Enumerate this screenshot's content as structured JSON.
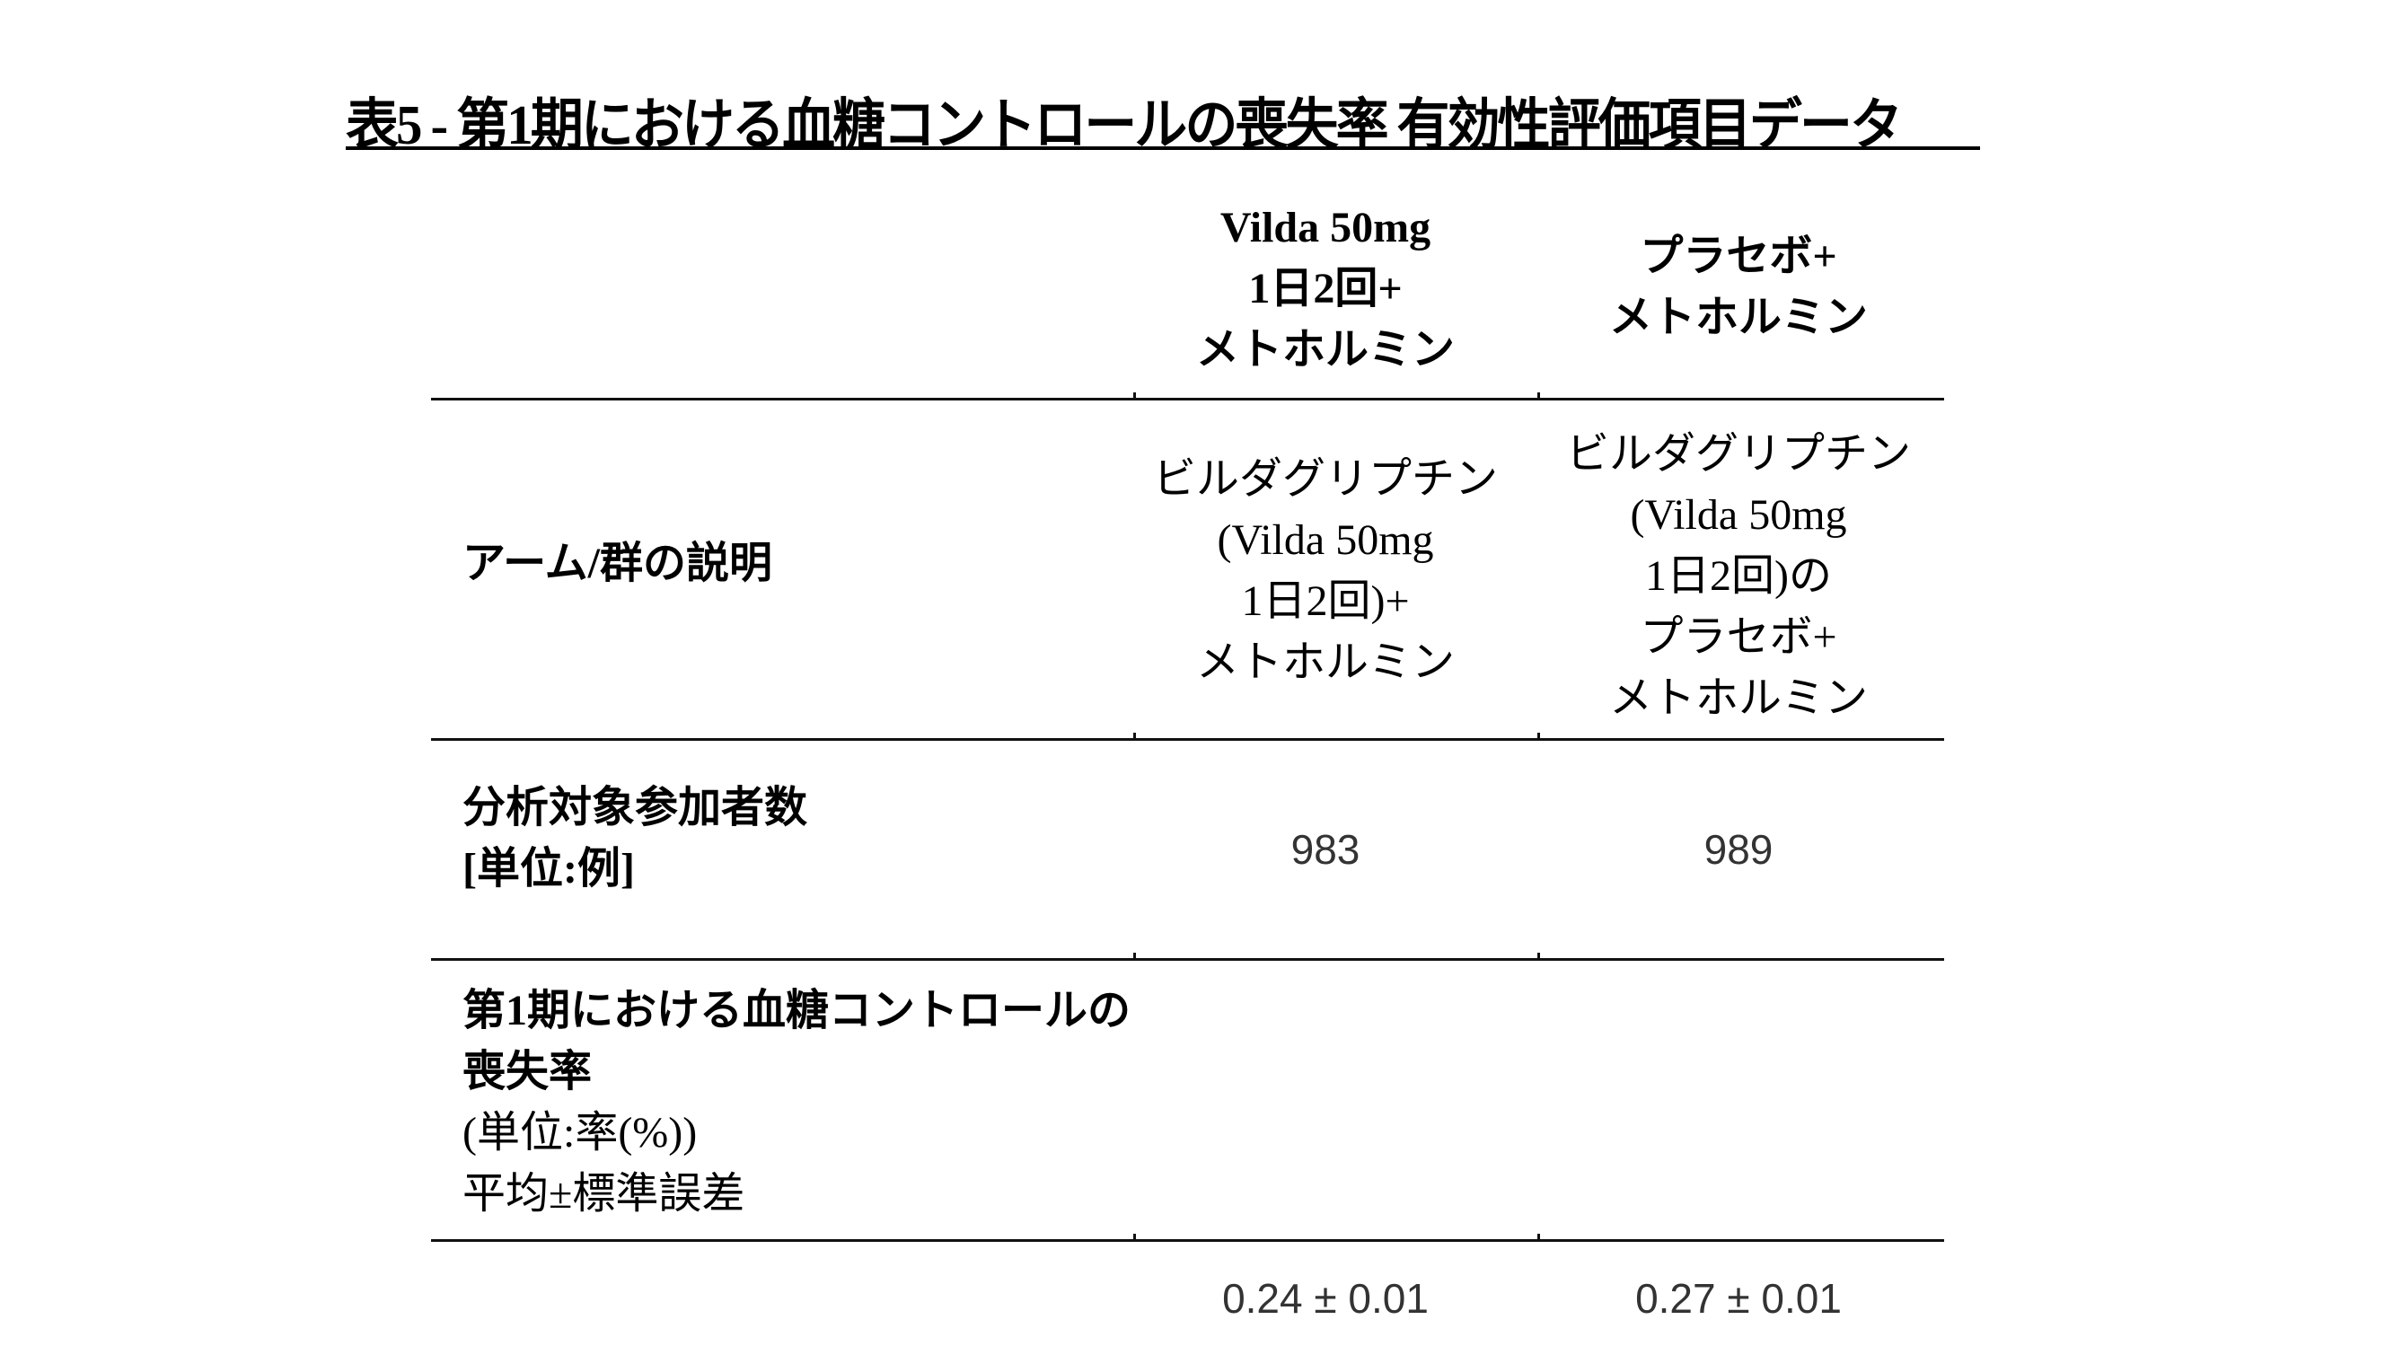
{
  "title": "表5 - 第1期における血糖コントロールの喪失率 有効性評価項目データ",
  "columns": [
    {
      "lines": [
        "Vilda 50mg",
        "1日2回+",
        "メトホルミン"
      ]
    },
    {
      "lines": [
        "プラセボ+",
        "メトホルミン"
      ]
    }
  ],
  "rows": {
    "arm": {
      "label": "アーム/群の説明",
      "values": [
        [
          "ビルダグリプチン",
          "(Vilda 50mg",
          "1日2回)+",
          "メトホルミン"
        ],
        [
          "ビルダグリプチン",
          "(Vilda 50mg",
          "1日2回)の",
          "プラセボ+",
          "メトホルミン"
        ]
      ]
    },
    "participants": {
      "label_lines": [
        "分析対象参加者数",
        "[単位:例]"
      ],
      "values": [
        "983",
        "989"
      ]
    },
    "loss_rate": {
      "label_bold_lines": [
        "第1期における血糖コントロールの",
        "喪失率"
      ],
      "label_lines": [
        "(単位:率(%))",
        "平均±標準誤差"
      ],
      "values": [
        "0.24 ± 0.01",
        "0.27 ± 0.01"
      ]
    }
  }
}
